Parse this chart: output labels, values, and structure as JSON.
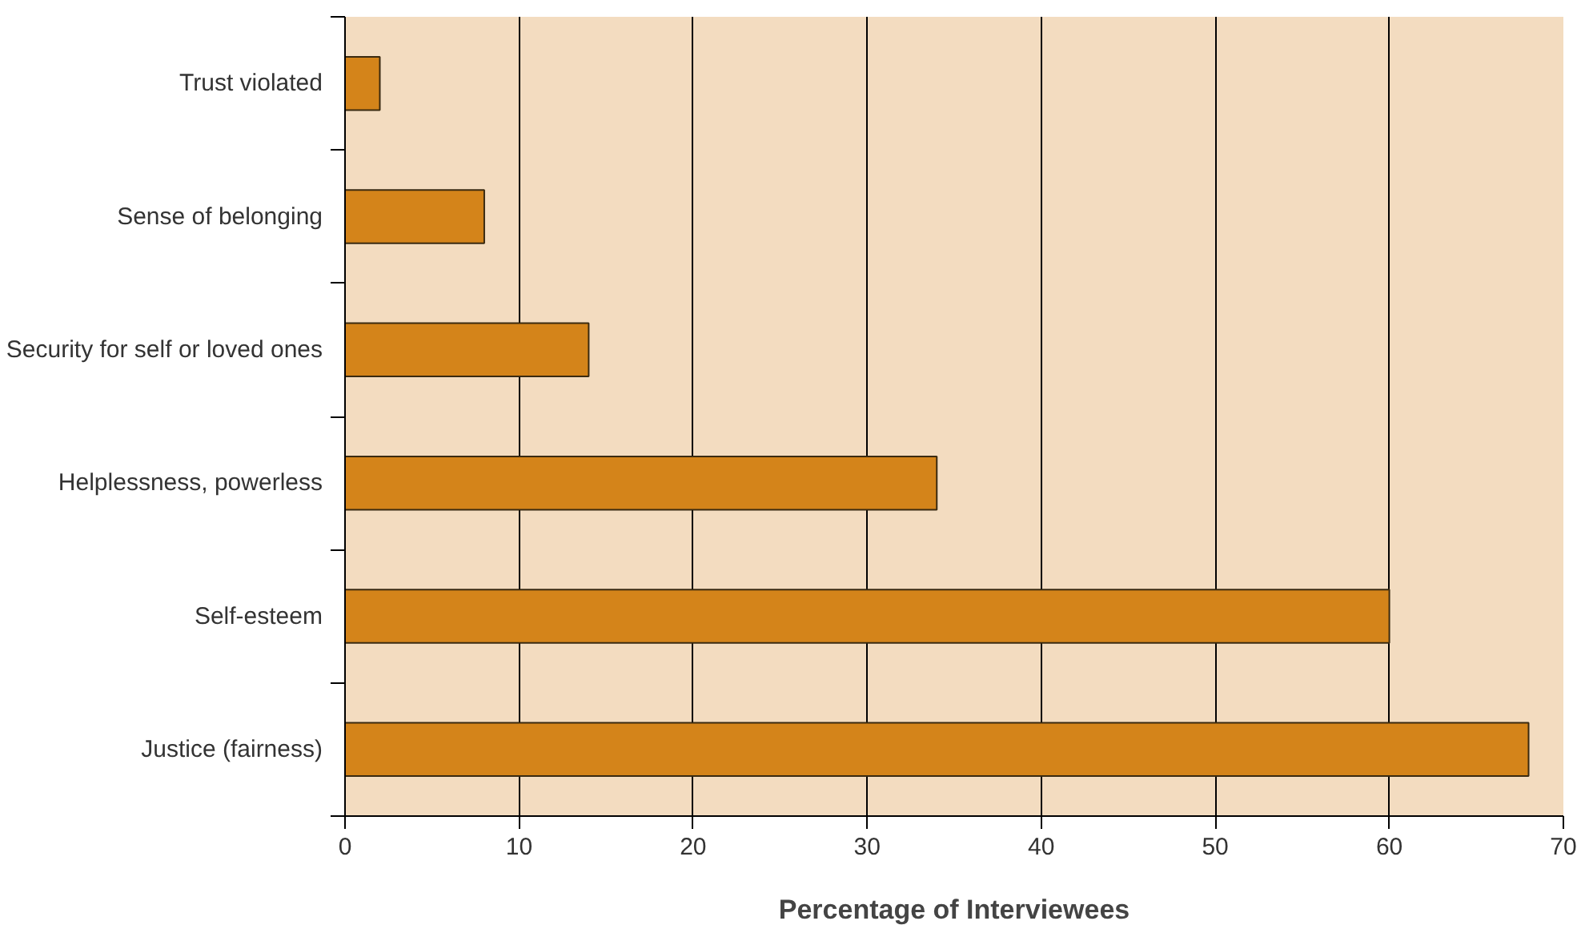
{
  "chart_data": {
    "type": "bar",
    "orientation": "horizontal",
    "xlabel": "Percentage of Interviewees",
    "categories": [
      "Trust violated",
      "Sense of belonging",
      "Security for self or loved ones",
      "Helplessness, powerless",
      "Self-esteem",
      "Justice (fairness)"
    ],
    "values": [
      2,
      8,
      14,
      34,
      60,
      68
    ],
    "color": "#d4841a",
    "xlim": [
      0,
      70
    ],
    "xticks": [
      0,
      10,
      20,
      30,
      40,
      50,
      60,
      70
    ],
    "grid": "x"
  }
}
